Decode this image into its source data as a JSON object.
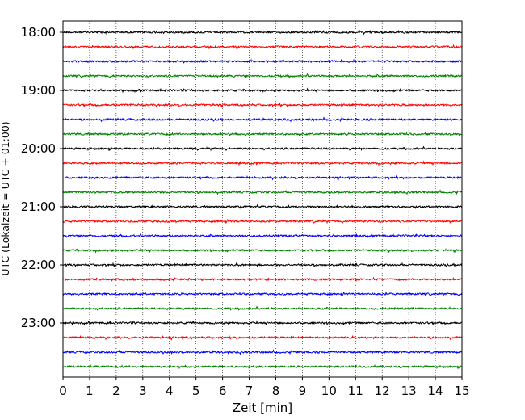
{
  "chart_data": {
    "type": "line",
    "title": "",
    "xlabel": "Zeit  [min]",
    "ylabel": "UTC (Lokalzeit = UTC + 01:00)",
    "xlim": [
      0,
      15
    ],
    "xticks": [
      0,
      1,
      2,
      3,
      4,
      5,
      6,
      7,
      8,
      9,
      10,
      11,
      12,
      13,
      14,
      15
    ],
    "yticks": [
      "18:00",
      "19:00",
      "20:00",
      "21:00",
      "22:00",
      "23:00"
    ],
    "trace_start": "18:00",
    "trace_interval_min": 15,
    "trace_count": 24,
    "trace_colors": [
      "#000000",
      "#ff0000",
      "#0000ff",
      "#008000"
    ],
    "grid": "vertical dotted lines at each minute",
    "legend": "none"
  }
}
